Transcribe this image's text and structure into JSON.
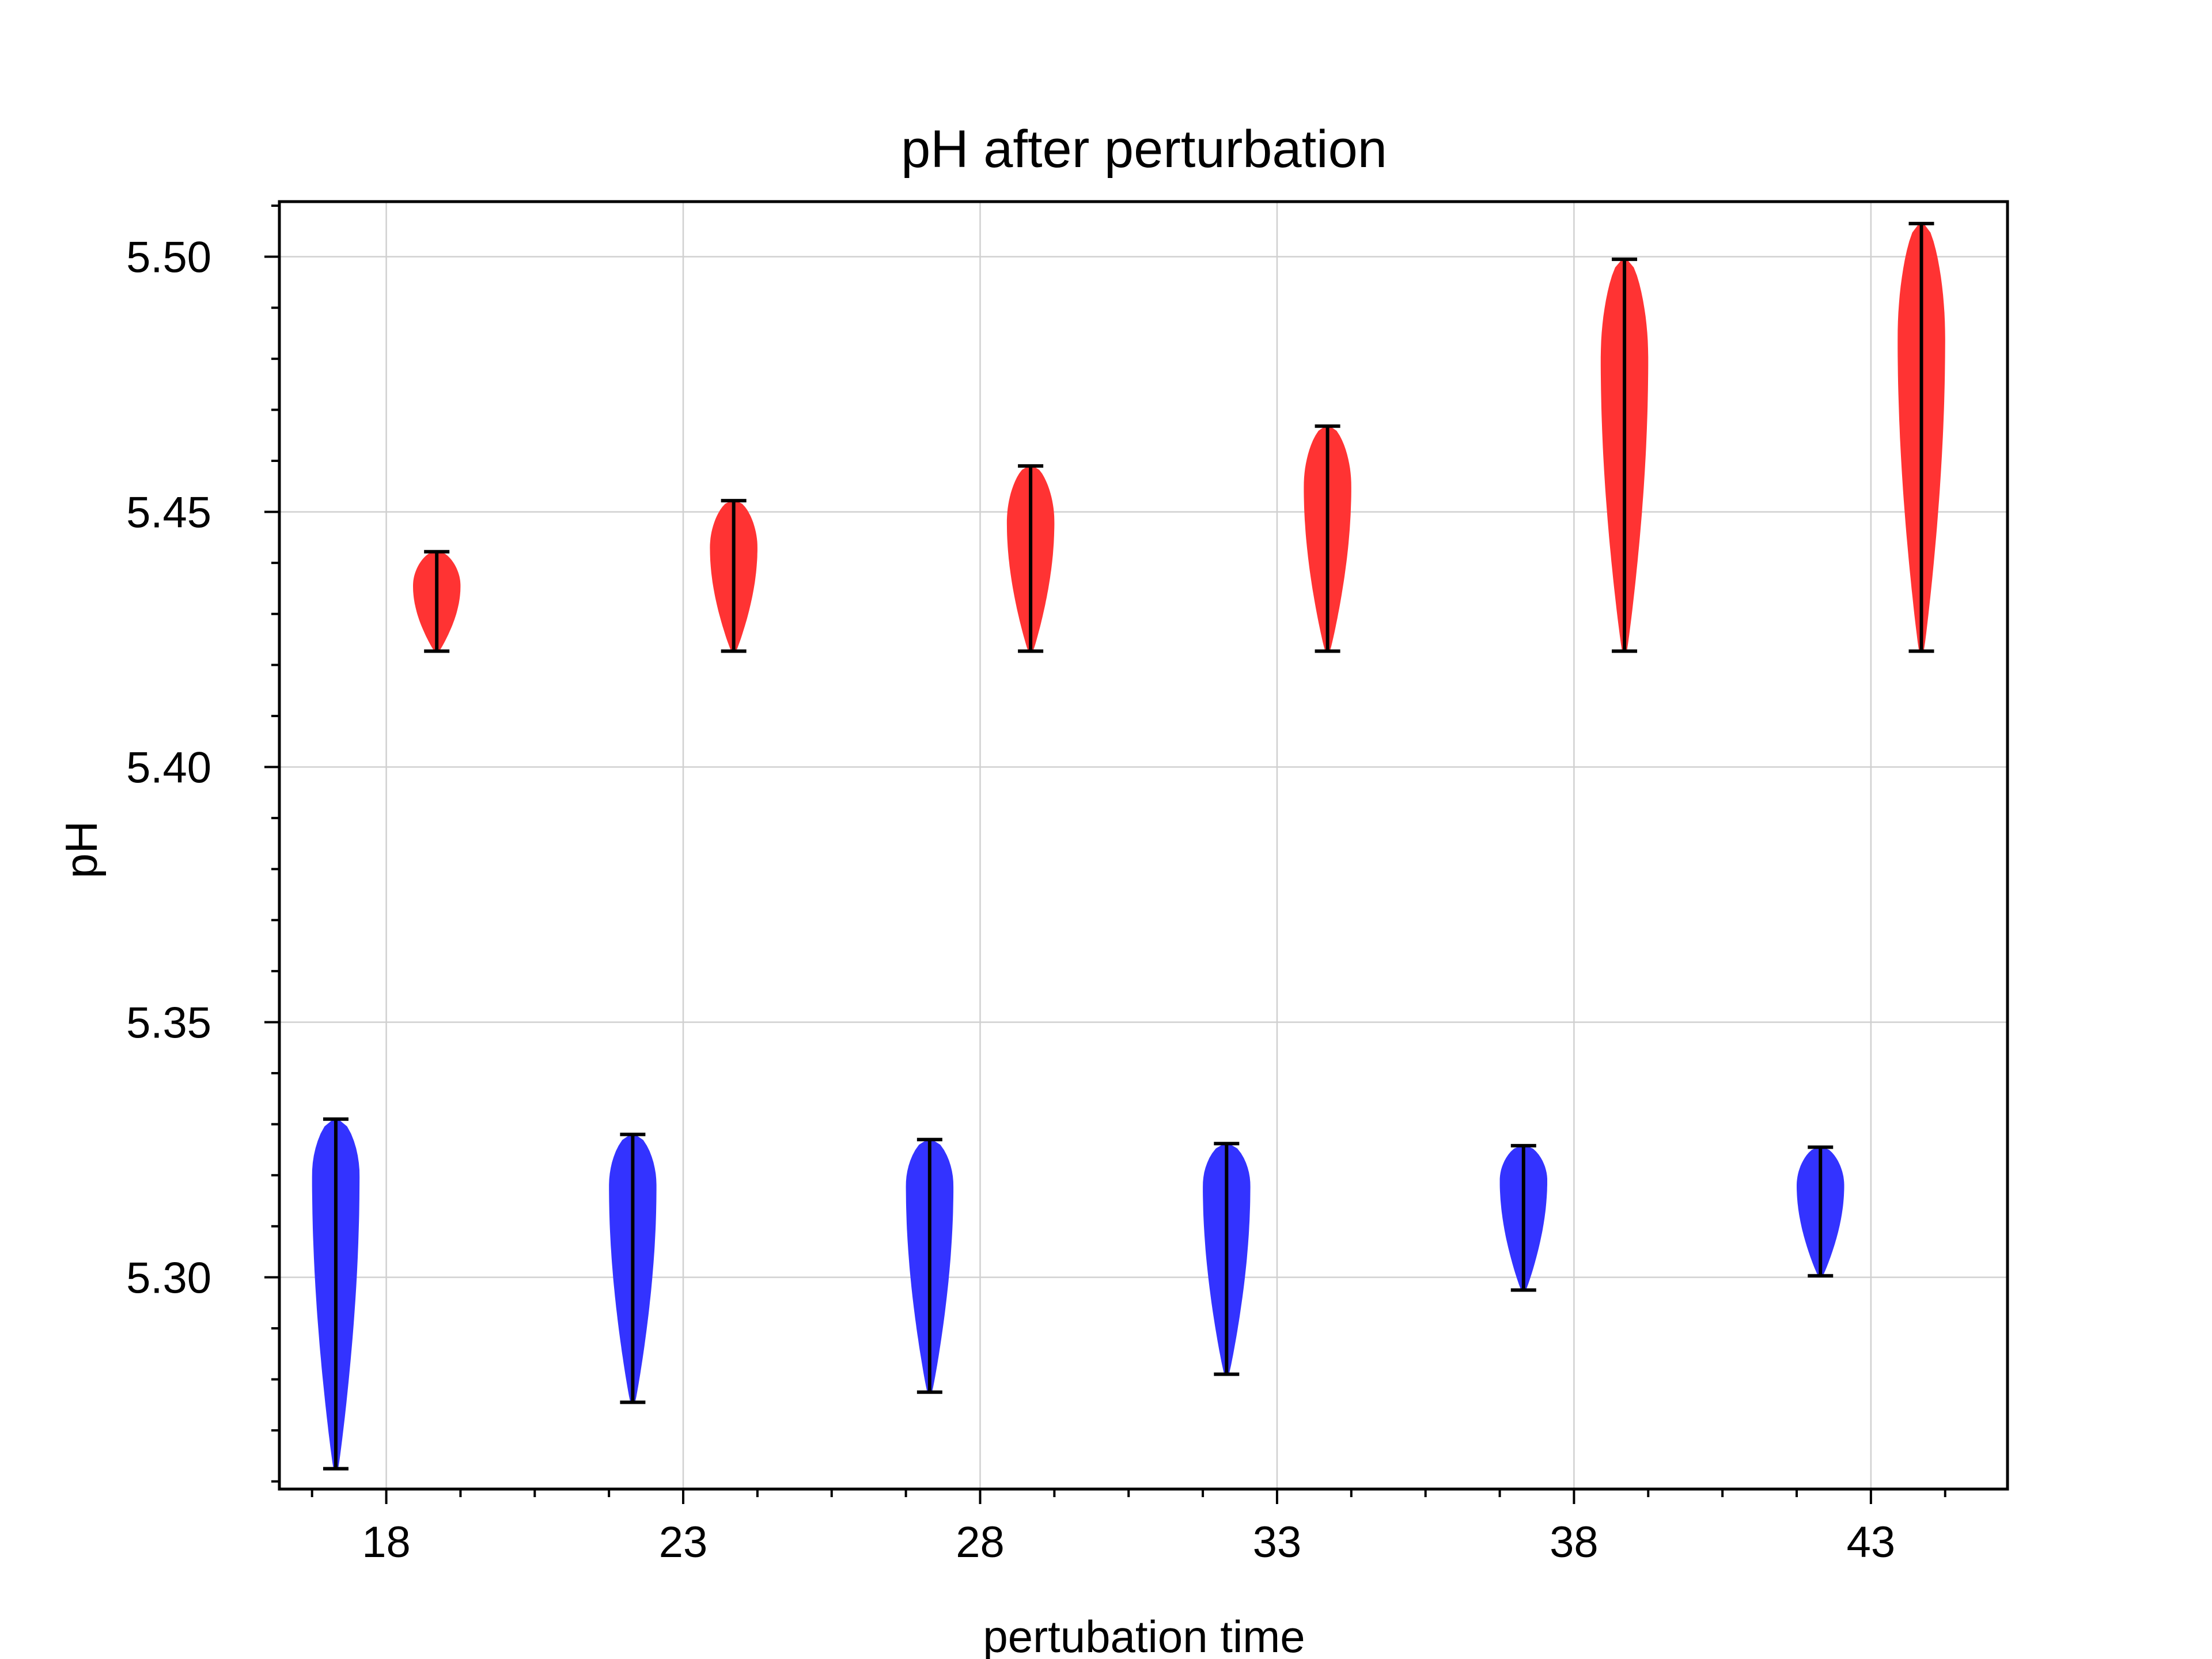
{
  "chart_data": {
    "type": "violin",
    "title": "pH after perturbation",
    "xlabel": "pertubation time",
    "ylabel": "pH",
    "xlim": [
      16.2,
      45.3
    ],
    "ylim": [
      5.2585,
      5.5108
    ],
    "x_ticks": [
      18,
      23,
      28,
      33,
      38,
      43
    ],
    "x_tick_labels": [
      "18",
      "23",
      "28",
      "33",
      "38",
      "43"
    ],
    "x_minor_step": 1.25,
    "y_ticks": [
      5.3,
      5.35,
      5.4,
      5.45,
      5.5
    ],
    "y_tick_labels": [
      "5.30",
      "5.35",
      "5.40",
      "5.45",
      "5.50"
    ],
    "y_minor_step": 0.01,
    "grid": true,
    "series": [
      {
        "color": "#3333ff",
        "violins": [
          {
            "x": 17.15,
            "min": 5.2625,
            "max": 5.331,
            "peak": 5.32,
            "width": 0.8
          },
          {
            "x": 22.15,
            "min": 5.2755,
            "max": 5.328,
            "peak": 5.318,
            "width": 0.8
          },
          {
            "x": 27.15,
            "min": 5.2775,
            "max": 5.327,
            "peak": 5.318,
            "width": 0.8
          },
          {
            "x": 32.15,
            "min": 5.281,
            "max": 5.3262,
            "peak": 5.318,
            "width": 0.8
          },
          {
            "x": 37.15,
            "min": 5.2975,
            "max": 5.3258,
            "peak": 5.319,
            "width": 0.8
          },
          {
            "x": 42.15,
            "min": 5.3003,
            "max": 5.3255,
            "peak": 5.318,
            "width": 0.8
          }
        ]
      },
      {
        "color": "#ff3333",
        "violins": [
          {
            "x": 18.85,
            "min": 5.4227,
            "max": 5.4422,
            "peak": 5.4355,
            "width": 0.8
          },
          {
            "x": 23.85,
            "min": 5.4227,
            "max": 5.4522,
            "peak": 5.443,
            "width": 0.8
          },
          {
            "x": 28.85,
            "min": 5.4227,
            "max": 5.459,
            "peak": 5.448,
            "width": 0.8
          },
          {
            "x": 33.85,
            "min": 5.4227,
            "max": 5.4668,
            "peak": 5.455,
            "width": 0.8
          },
          {
            "x": 38.85,
            "min": 5.4227,
            "max": 5.4995,
            "peak": 5.48,
            "width": 0.8
          },
          {
            "x": 43.85,
            "min": 5.4227,
            "max": 5.5065,
            "peak": 5.484,
            "width": 0.8
          }
        ]
      }
    ]
  }
}
